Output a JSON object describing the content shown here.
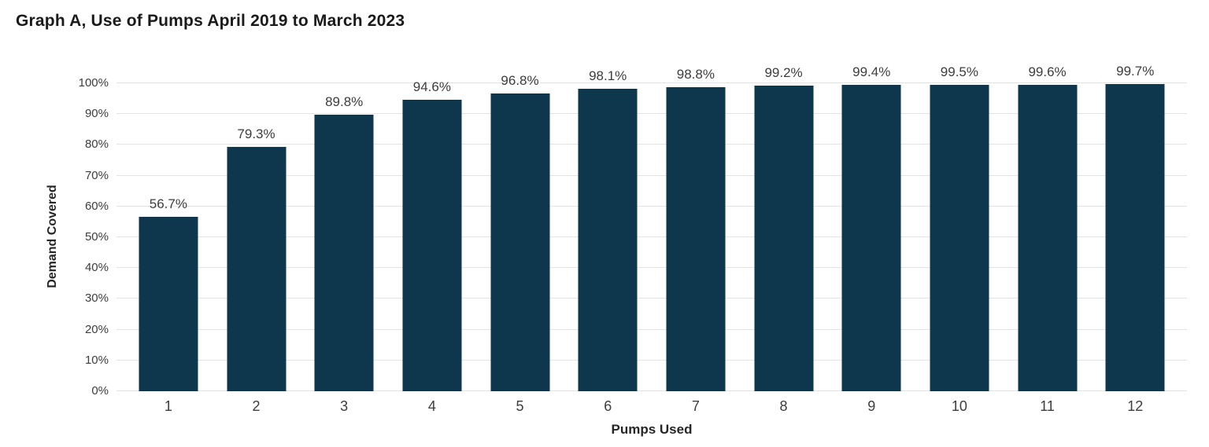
{
  "colors": {
    "bar": "#0e374d",
    "gridline": "#e3e3e3",
    "title_text": "#1a1a1a",
    "tick_label_text": "#3d3d3d",
    "axis_title_text": "#262626",
    "background": "#ffffff"
  },
  "chart_data": {
    "type": "bar",
    "title": "Graph A, Use of Pumps April 2019 to March 2023",
    "xlabel": "Pumps Used",
    "ylabel": "Demand Covered",
    "categories": [
      "1",
      "2",
      "3",
      "4",
      "5",
      "6",
      "7",
      "8",
      "9",
      "10",
      "11",
      "12"
    ],
    "values": [
      56.7,
      79.3,
      89.8,
      94.6,
      96.8,
      98.1,
      98.8,
      99.2,
      99.4,
      99.5,
      99.6,
      99.7
    ],
    "bar_labels": [
      "56.7%",
      "79.3%",
      "89.8%",
      "94.6%",
      "96.8%",
      "98.1%",
      "98.8%",
      "99.2%",
      "99.4%",
      "99.5%",
      "99.6%",
      "99.7%"
    ],
    "y_ticks": [
      0,
      10,
      20,
      30,
      40,
      50,
      60,
      70,
      80,
      90,
      100
    ],
    "y_tick_labels": [
      "0%",
      "10%",
      "20%",
      "30%",
      "40%",
      "50%",
      "60%",
      "70%",
      "80%",
      "90%",
      "100%"
    ],
    "ylim": [
      0,
      100
    ],
    "grid": "horizontal",
    "legend": "none"
  }
}
